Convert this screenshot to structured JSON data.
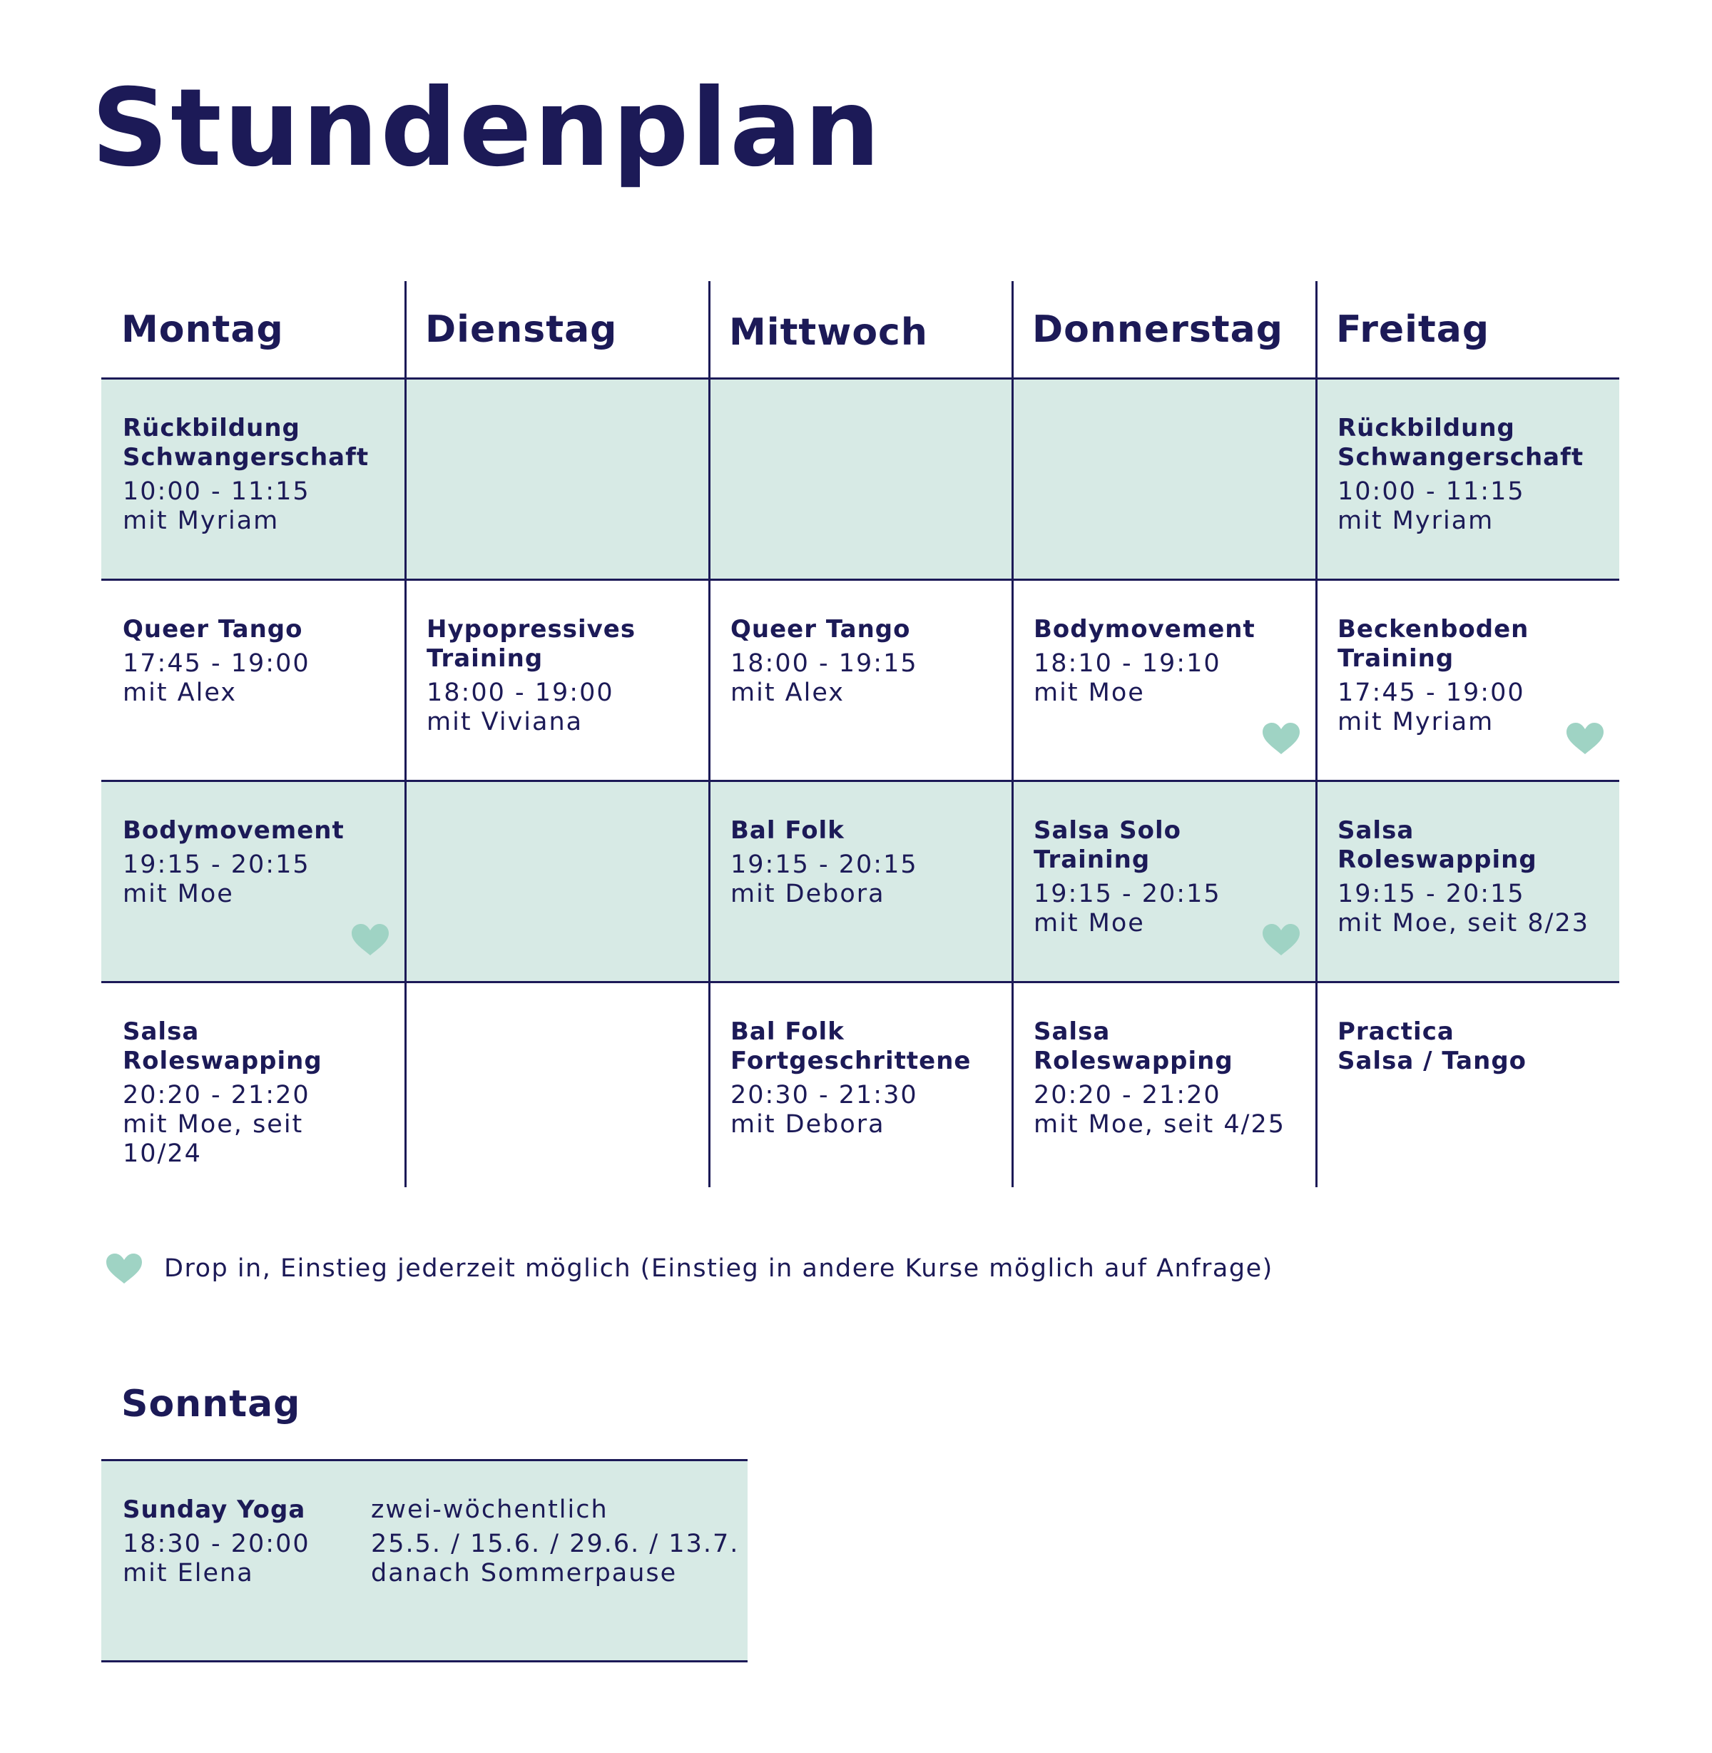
{
  "title": "Stundenplan",
  "colors": {
    "navy": "#1c1a57",
    "mint": "#d7eae5",
    "heart": "#9fd3c4"
  },
  "days": [
    "Montag",
    "Dienstag",
    "Mittwoch",
    "Donnerstag",
    "Freitag"
  ],
  "rows": [
    [
      {
        "title": "Rückbildung\nSchwangerschaft",
        "time": "10:00 - 11:15",
        "with": "mit Myriam",
        "drop_in": false
      },
      null,
      null,
      null,
      {
        "title": "Rückbildung\nSchwangerschaft",
        "time": "10:00 - 11:15",
        "with": "mit Myriam",
        "drop_in": false
      }
    ],
    [
      {
        "title": "Queer Tango",
        "time": "17:45 - 19:00",
        "with": "mit Alex",
        "drop_in": false
      },
      {
        "title": "Hypopressives\nTraining",
        "time": "18:00 - 19:00",
        "with": "mit Viviana",
        "drop_in": false
      },
      {
        "title": "Queer Tango",
        "time": "18:00 - 19:15",
        "with": "mit Alex",
        "drop_in": false
      },
      {
        "title": "Bodymovement",
        "time": "18:10 - 19:10",
        "with": "mit Moe",
        "drop_in": true
      },
      {
        "title": "Beckenboden\nTraining",
        "time": "17:45 - 19:00",
        "with": "mit Myriam",
        "drop_in": true
      }
    ],
    [
      {
        "title": "Bodymovement",
        "time": "19:15 - 20:15",
        "with": "mit Moe",
        "drop_in": true
      },
      null,
      {
        "title": "Bal Folk",
        "time": "19:15 - 20:15",
        "with": "mit Debora",
        "drop_in": false
      },
      {
        "title": "Salsa Solo Training",
        "time": "19:15 - 20:15",
        "with": "mit Moe",
        "drop_in": true
      },
      {
        "title": "Salsa Roleswapping",
        "time": "19:15 - 20:15",
        "with": "mit Moe, seit 8/23",
        "drop_in": false
      }
    ],
    [
      {
        "title": "Salsa Roleswapping",
        "time": "20:20 - 21:20",
        "with": "mit Moe, seit 10/24",
        "drop_in": false
      },
      null,
      {
        "title": "Bal Folk\nFortgeschrittene",
        "time": "20:30 - 21:30",
        "with": "mit Debora",
        "drop_in": false
      },
      {
        "title": "Salsa Roleswapping",
        "time": "20:20 - 21:20",
        "with": "mit Moe, seit 4/25",
        "drop_in": false
      },
      {
        "title": "Practica\nSalsa / Tango",
        "time": "",
        "with": "",
        "drop_in": false
      }
    ]
  ],
  "legend": {
    "icon": "heart-icon",
    "text": "Drop in, Einstieg jederzeit möglich (Einstieg in andere Kurse möglich auf Anfrage)"
  },
  "sunday": {
    "day": "Sonntag",
    "title": "Sunday Yoga",
    "time": "18:30 - 20:00",
    "with": "mit Elena",
    "note": "zwei-wöchentlich",
    "dates": "25.5. / 15.6. / 29.6. / 13.7.",
    "after": "danach Sommerpause"
  }
}
